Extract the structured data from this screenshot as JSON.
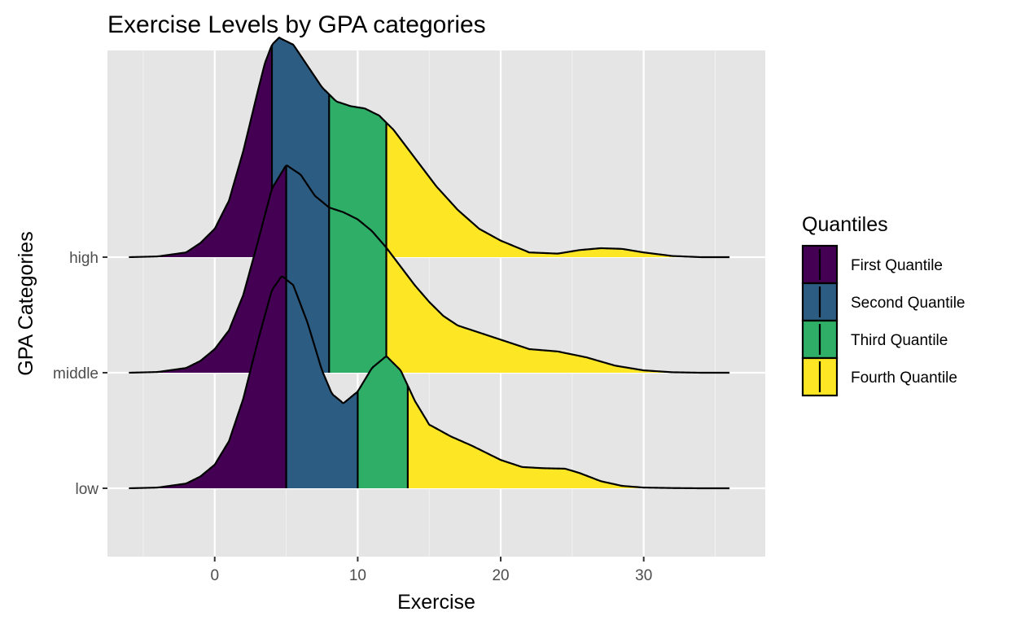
{
  "chart_data": {
    "type": "ridgeline",
    "title": "Exercise Levels by GPA categories",
    "xlabel": "Exercise",
    "ylabel": "GPA Categories",
    "xlim": [
      -7.5,
      38.5
    ],
    "x_ticks": [
      0,
      10,
      20,
      30
    ],
    "grid": true,
    "legend_title": "Quantiles",
    "legend_position": "right",
    "quantiles": [
      {
        "name": "First Quantile",
        "color": "#440154"
      },
      {
        "name": "Second Quantile",
        "color": "#2D5C82"
      },
      {
        "name": "Third Quantile",
        "color": "#2EAE66"
      },
      {
        "name": "Fourth Quantile",
        "color": "#FDE725"
      }
    ],
    "categories": [
      "low",
      "middle",
      "high"
    ],
    "series": [
      {
        "name": "low",
        "quantile_breaks": [
          5,
          10,
          13.5
        ],
        "x": [
          -6,
          -4,
          -2,
          -1,
          0,
          1,
          2,
          3,
          4,
          4.7,
          5.5,
          6.5,
          7.5,
          8.2,
          9,
          10,
          11,
          12,
          13,
          14,
          15,
          16.5,
          18,
          20,
          21.5,
          23,
          24.5,
          25.5,
          27,
          28.5,
          30,
          32,
          34,
          36
        ],
        "density": [
          0,
          0.003,
          0.02,
          0.05,
          0.1,
          0.2,
          0.38,
          0.62,
          0.84,
          0.9,
          0.86,
          0.7,
          0.5,
          0.4,
          0.36,
          0.41,
          0.51,
          0.56,
          0.5,
          0.37,
          0.27,
          0.22,
          0.18,
          0.12,
          0.09,
          0.085,
          0.083,
          0.065,
          0.03,
          0.01,
          0.003,
          0.001,
          0,
          0
        ]
      },
      {
        "name": "middle",
        "quantile_breaks": [
          5,
          8,
          12
        ],
        "x": [
          -6,
          -4,
          -2,
          -1,
          0,
          1,
          2,
          3,
          4,
          5,
          6,
          7,
          8,
          9,
          10,
          11,
          12,
          13,
          14,
          15,
          16,
          17,
          18,
          20,
          22,
          24,
          26,
          28,
          30,
          32,
          34,
          36
        ],
        "density": [
          0,
          0.003,
          0.02,
          0.05,
          0.1,
          0.18,
          0.33,
          0.55,
          0.78,
          0.88,
          0.84,
          0.75,
          0.7,
          0.68,
          0.65,
          0.6,
          0.53,
          0.45,
          0.37,
          0.3,
          0.24,
          0.2,
          0.18,
          0.14,
          0.1,
          0.09,
          0.065,
          0.03,
          0.01,
          0.002,
          0,
          0
        ]
      },
      {
        "name": "high",
        "quantile_breaks": [
          4,
          8,
          12
        ],
        "x": [
          -6,
          -4,
          -2,
          -1,
          0,
          1,
          2,
          3,
          3.5,
          4,
          4.5,
          5.5,
          6.5,
          7.5,
          8.5,
          9.5,
          10.5,
          11.5,
          12.5,
          13.5,
          14.5,
          15.5,
          17,
          18.5,
          20,
          22,
          24,
          25.5,
          27,
          28.5,
          30,
          32,
          34,
          36
        ],
        "density": [
          0,
          0.003,
          0.02,
          0.06,
          0.12,
          0.24,
          0.45,
          0.7,
          0.82,
          0.9,
          0.93,
          0.9,
          0.81,
          0.72,
          0.66,
          0.64,
          0.63,
          0.6,
          0.54,
          0.46,
          0.38,
          0.3,
          0.2,
          0.12,
          0.07,
          0.02,
          0.015,
          0.03,
          0.038,
          0.035,
          0.02,
          0.005,
          0,
          0
        ]
      }
    ]
  }
}
